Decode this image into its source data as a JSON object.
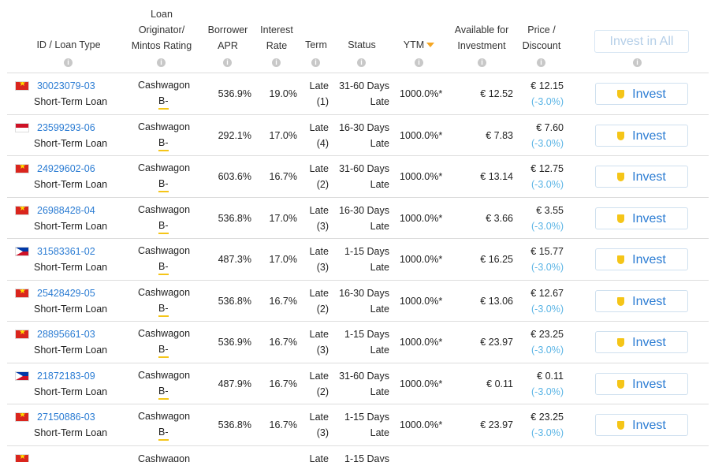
{
  "header": {
    "id_loan_type": "ID / Loan Type",
    "originator_l1": "Loan",
    "originator_l2": "Originator/",
    "originator_l3": "Mintos Rating",
    "apr_l1": "Borrower",
    "apr_l2": "APR",
    "rate_l1": "Interest",
    "rate_l2": "Rate",
    "term": "Term",
    "status": "Status",
    "ytm": "YTM",
    "avail_l1": "Available for",
    "avail_l2": "Investment",
    "price_l1": "Price /",
    "price_l2": "Discount",
    "invest_all": "Invest in All",
    "info_glyph": "i"
  },
  "invest_label": "Invest",
  "rows": [
    {
      "flag": "vn",
      "id": "30023079-03",
      "type": "Short-Term Loan",
      "originator": "Cashwagon",
      "rating": "B-",
      "apr": "536.9%",
      "rate": "19.0%",
      "term1": "Late",
      "term2": "(1)",
      "status1": "31-60 Days",
      "status2": "Late",
      "ytm": "1000.0%*",
      "avail": "€ 12.52",
      "price": "€ 12.15",
      "disc": "(-3.0%)"
    },
    {
      "flag": "id",
      "id": "23599293-06",
      "type": "Short-Term Loan",
      "originator": "Cashwagon",
      "rating": "B-",
      "apr": "292.1%",
      "rate": "17.0%",
      "term1": "Late",
      "term2": "(4)",
      "status1": "16-30 Days",
      "status2": "Late",
      "ytm": "1000.0%*",
      "avail": "€ 7.83",
      "price": "€ 7.60",
      "disc": "(-3.0%)"
    },
    {
      "flag": "vn",
      "id": "24929602-06",
      "type": "Short-Term Loan",
      "originator": "Cashwagon",
      "rating": "B-",
      "apr": "603.6%",
      "rate": "16.7%",
      "term1": "Late",
      "term2": "(2)",
      "status1": "31-60 Days",
      "status2": "Late",
      "ytm": "1000.0%*",
      "avail": "€ 13.14",
      "price": "€ 12.75",
      "disc": "(-3.0%)"
    },
    {
      "flag": "vn",
      "id": "26988428-04",
      "type": "Short-Term Loan",
      "originator": "Cashwagon",
      "rating": "B-",
      "apr": "536.8%",
      "rate": "17.0%",
      "term1": "Late",
      "term2": "(3)",
      "status1": "16-30 Days",
      "status2": "Late",
      "ytm": "1000.0%*",
      "avail": "€ 3.66",
      "price": "€ 3.55",
      "disc": "(-3.0%)"
    },
    {
      "flag": "ph",
      "id": "31583361-02",
      "type": "Short-Term Loan",
      "originator": "Cashwagon",
      "rating": "B-",
      "apr": "487.3%",
      "rate": "17.0%",
      "term1": "Late",
      "term2": "(3)",
      "status1": "1-15 Days",
      "status2": "Late",
      "ytm": "1000.0%*",
      "avail": "€ 16.25",
      "price": "€ 15.77",
      "disc": "(-3.0%)"
    },
    {
      "flag": "vn",
      "id": "25428429-05",
      "type": "Short-Term Loan",
      "originator": "Cashwagon",
      "rating": "B-",
      "apr": "536.8%",
      "rate": "16.7%",
      "term1": "Late",
      "term2": "(2)",
      "status1": "16-30 Days",
      "status2": "Late",
      "ytm": "1000.0%*",
      "avail": "€ 13.06",
      "price": "€ 12.67",
      "disc": "(-3.0%)"
    },
    {
      "flag": "vn",
      "id": "28895661-03",
      "type": "Short-Term Loan",
      "originator": "Cashwagon",
      "rating": "B-",
      "apr": "536.9%",
      "rate": "16.7%",
      "term1": "Late",
      "term2": "(3)",
      "status1": "1-15 Days",
      "status2": "Late",
      "ytm": "1000.0%*",
      "avail": "€ 23.97",
      "price": "€ 23.25",
      "disc": "(-3.0%)"
    },
    {
      "flag": "ph",
      "id": "21872183-09",
      "type": "Short-Term Loan",
      "originator": "Cashwagon",
      "rating": "B-",
      "apr": "487.9%",
      "rate": "16.7%",
      "term1": "Late",
      "term2": "(2)",
      "status1": "31-60 Days",
      "status2": "Late",
      "ytm": "1000.0%*",
      "avail": "€ 0.11",
      "price": "€ 0.11",
      "disc": "(-3.0%)"
    },
    {
      "flag": "vn",
      "id": "27150886-03",
      "type": "Short-Term Loan",
      "originator": "Cashwagon",
      "rating": "B-",
      "apr": "536.8%",
      "rate": "16.7%",
      "term1": "Late",
      "term2": "(3)",
      "status1": "1-15 Days",
      "status2": "Late",
      "ytm": "1000.0%*",
      "avail": "€ 23.97",
      "price": "€ 23.25",
      "disc": "(-3.0%)"
    }
  ],
  "partial_row": {
    "flag": "vn",
    "originator": "Cashwagon",
    "term1": "Late",
    "status1": "1-15 Days"
  }
}
